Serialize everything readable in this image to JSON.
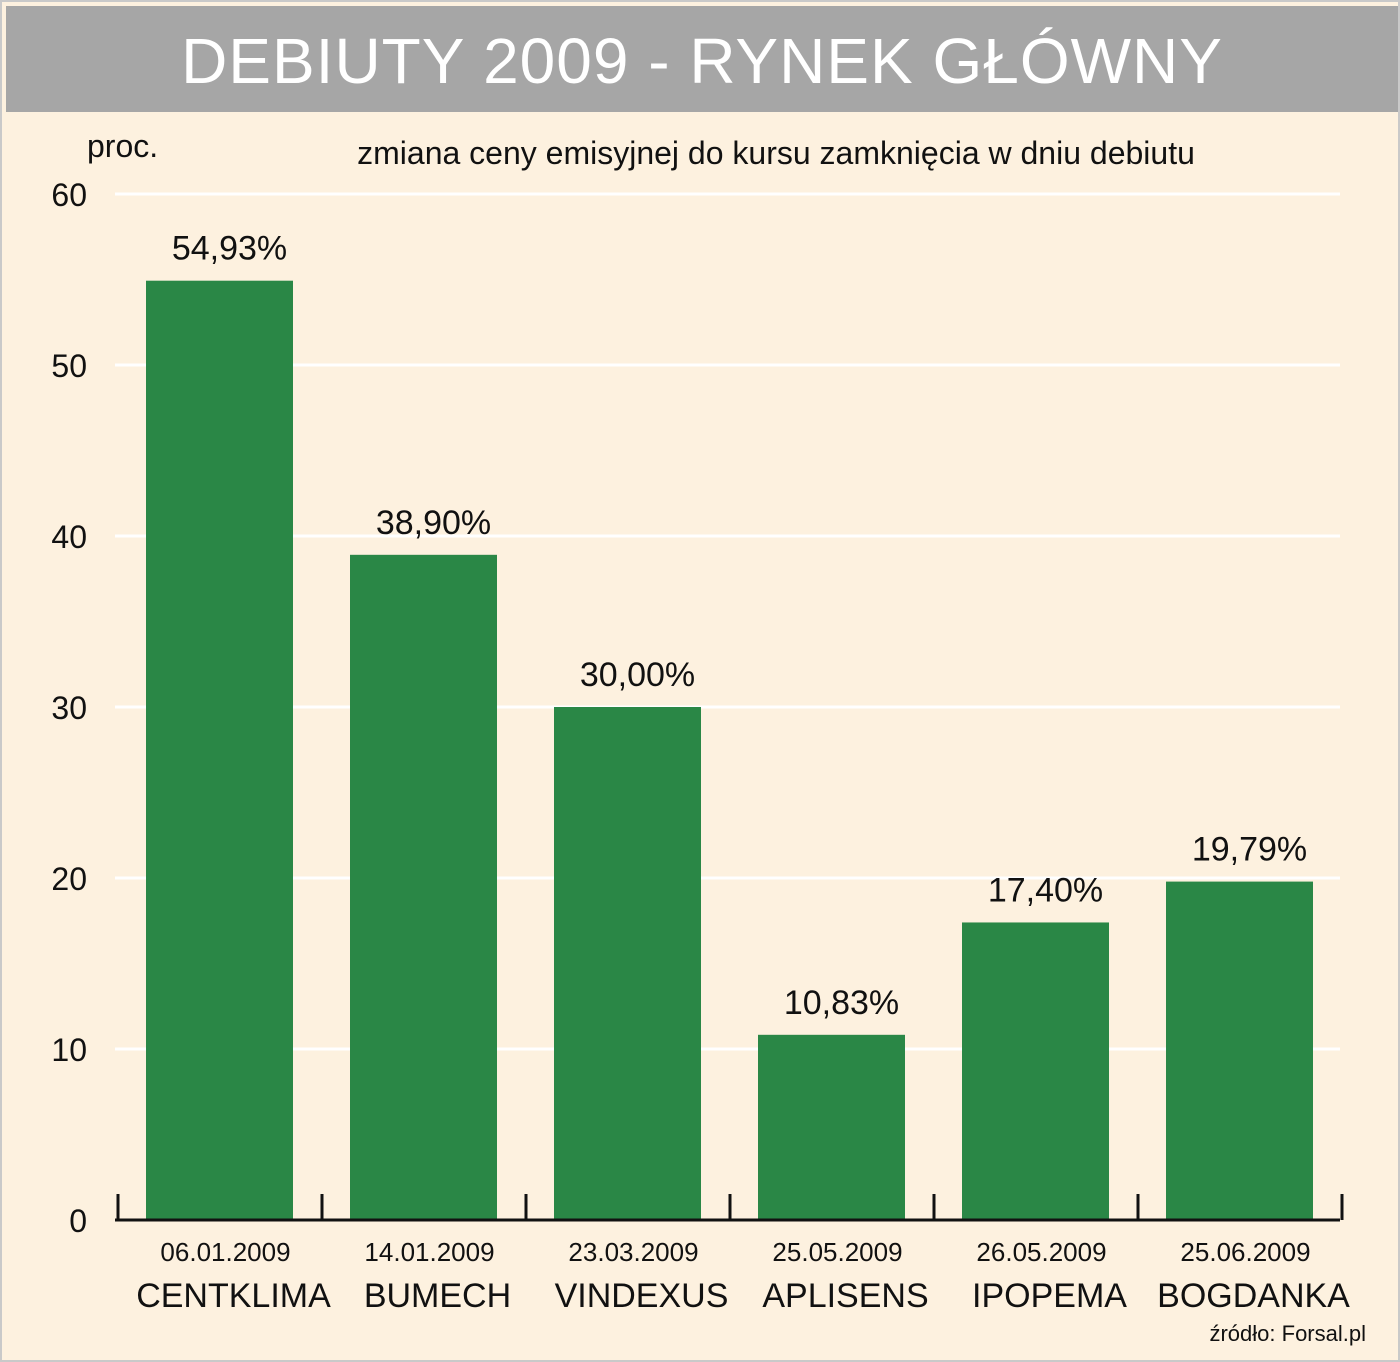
{
  "title": "DEBIUTY 2009 - RYNEK GŁÓWNY",
  "source": "źródło: Forsal.pl",
  "colors": {
    "background": "#fdf1df",
    "banner": "#a6a6a6",
    "bar": "#2a8746",
    "grid": "#ffffff"
  },
  "chart_data": {
    "type": "bar",
    "subtitle": "zmiana ceny emisyjnej do kursu zamknięcia w dniu debiutu",
    "ylabel": "proc.",
    "ylim": [
      0,
      60
    ],
    "yticks": [
      "0",
      "10",
      "20",
      "30",
      "40",
      "50",
      "60"
    ],
    "grid": true,
    "categories": [
      "CENTKLIMA",
      "BUMECH",
      "VINDEXUS",
      "APLISENS",
      "IPOPEMA",
      "BOGDANKA"
    ],
    "dates": [
      "06.01.2009",
      "14.01.2009",
      "23.03.2009",
      "25.05.2009",
      "26.05.2009",
      "25.06.2009"
    ],
    "values": [
      54.93,
      38.9,
      30.0,
      10.83,
      17.4,
      19.79
    ],
    "value_labels": [
      "54,93%",
      "38,90%",
      "30,00%",
      "10,83%",
      "17,40%",
      "19,79%"
    ]
  }
}
